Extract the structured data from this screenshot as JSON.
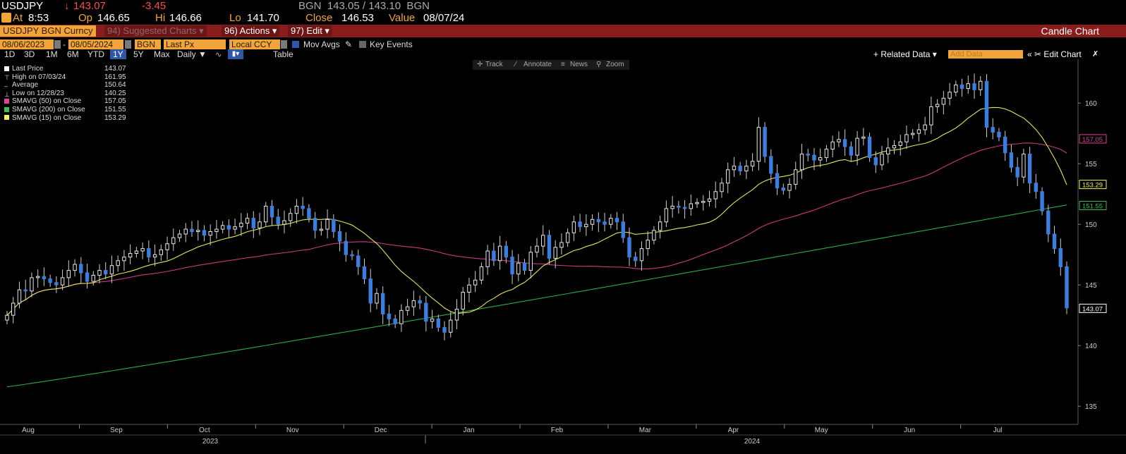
{
  "header": {
    "ticker": "USDJPY",
    "last": "143.07",
    "change": "-3.45",
    "bid_ask": "BGN  143.05 / 143.10  BGN",
    "at_label": "At",
    "at_time": "8:53",
    "op_label": "Op",
    "op_value": "146.65",
    "hi_label": "Hi",
    "hi_value": "146.66",
    "lo_label": "Lo",
    "lo_value": "141.70",
    "close_label": "Close",
    "close_value": "146.53",
    "value_label": "Value",
    "value_date": "08/07/24"
  },
  "command_bar": {
    "security": "USDJPY BGN Curncy",
    "suggested": "94) Suggested Charts ▾",
    "actions": "96) Actions ▾",
    "edit": "97) Edit ▾",
    "chart_type": "Candle Chart"
  },
  "inputs": {
    "start_date": "08/06/2023",
    "end_date": "08/05/2024",
    "source": "BGN",
    "field": "Last Px",
    "currency": "Local CCY",
    "mov_avgs": "Mov Avgs",
    "key_events": "Key Events"
  },
  "periods": [
    "1D",
    "3D",
    "1M",
    "6M",
    "YTD",
    "1Y",
    "5Y",
    "Max"
  ],
  "selected_period": "1Y",
  "frequency": "Daily ▼",
  "table_label": "Table",
  "right_tools": {
    "related": "+ Related Data ▾",
    "add_data_placeholder": "Add Data",
    "edit_chart": "«  ✂ Edit Chart"
  },
  "chart_tools": {
    "track": "Track",
    "annotate": "Annotate",
    "news": "News",
    "zoom": "Zoom"
  },
  "legend": [
    {
      "label": "Last Price",
      "value": "143.07",
      "color": "#ffffff"
    },
    {
      "label": "High on 07/03/24",
      "value": "161.95",
      "color": ""
    },
    {
      "label": "Average",
      "value": "150.64",
      "color": ""
    },
    {
      "label": "Low on 12/28/23",
      "value": "140.25",
      "color": ""
    },
    {
      "label": "SMAVG (50)  on Close",
      "value": "157.05",
      "color": "#e0429a"
    },
    {
      "label": "SMAVG (200)  on Close",
      "value": "151.55",
      "color": "#3fbf4f"
    },
    {
      "label": "SMAVG (15)  on Close",
      "value": "153.29",
      "color": "#f2f25a"
    }
  ],
  "chart_data": {
    "type": "candlestick",
    "ylim": [
      133.5,
      163.5
    ],
    "y_ticks": [
      "135",
      "140",
      "145",
      "150",
      "155",
      "160"
    ],
    "x_months": [
      "Aug",
      "Sep",
      "Oct",
      "Nov",
      "Dec",
      "Jan",
      "Feb",
      "Mar",
      "Apr",
      "May",
      "Jun",
      "Jul"
    ],
    "x_years": [
      "2023",
      "2024"
    ],
    "tags": [
      {
        "label": "157.05",
        "value": 157.05,
        "color": "#e0429a"
      },
      {
        "label": "153.29",
        "value": 153.29,
        "color": "#f2f25a"
      },
      {
        "label": "151.55",
        "value": 151.55,
        "color": "#3fbf4f"
      },
      {
        "label": "143.07",
        "value": 143.07,
        "color": "#ffffff"
      }
    ],
    "close_series": [
      142.5,
      143.5,
      144.6,
      144.5,
      145.6,
      145.7,
      145.5,
      145.2,
      145.0,
      145.6,
      146.2,
      146.7,
      146.0,
      145.3,
      145.8,
      146.2,
      145.9,
      146.6,
      147.0,
      147.3,
      147.6,
      147.8,
      148.0,
      147.3,
      147.5,
      147.9,
      148.4,
      148.9,
      149.2,
      149.6,
      149.4,
      149.5,
      149.1,
      149.4,
      149.6,
      149.9,
      149.6,
      149.8,
      150.1,
      150.5,
      149.7,
      150.2,
      151.5,
      150.6,
      150.0,
      150.3,
      150.9,
      151.5,
      151.3,
      150.5,
      149.5,
      149.6,
      150.4,
      149.4,
      148.6,
      147.5,
      147.4,
      146.5,
      145.5,
      143.5,
      144.3,
      142.6,
      142.2,
      141.8,
      142.9,
      143.2,
      143.7,
      143.5,
      142.0,
      142.2,
      141.5,
      141.1,
      142.1,
      143.0,
      144.4,
      145.0,
      145.4,
      146.5,
      147.8,
      147.0,
      148.2,
      147.3,
      145.9,
      146.8,
      146.2,
      147.7,
      148.2,
      149.1,
      147.2,
      148.1,
      148.5,
      149.3,
      150.2,
      149.8,
      150.0,
      150.4,
      150.2,
      150.0,
      150.5,
      150.2,
      148.9,
      147.3,
      147.0,
      148.0,
      148.7,
      149.5,
      150.2,
      151.3,
      151.5,
      151.4,
      151.3,
      151.7,
      151.8,
      151.9,
      152.1,
      152.7,
      153.4,
      154.5,
      154.8,
      154.4,
      154.8,
      155.2,
      158.0,
      155.6,
      154.2,
      153.0,
      152.8,
      153.3,
      154.5,
      155.8,
      155.7,
      155.3,
      155.5,
      156.2,
      156.8,
      157.0,
      156.4,
      155.7,
      157.1,
      157.2,
      155.5,
      154.9,
      155.8,
      156.3,
      156.5,
      156.8,
      157.4,
      157.5,
      157.8,
      158.2,
      159.7,
      159.9,
      160.4,
      160.9,
      161.5,
      161.2,
      161.6,
      161.1,
      161.8,
      158.0,
      157.6,
      157.2,
      155.9,
      154.7,
      153.9,
      155.8,
      153.4,
      152.7,
      151.1,
      149.2,
      148.0,
      146.5,
      143.1
    ]
  }
}
